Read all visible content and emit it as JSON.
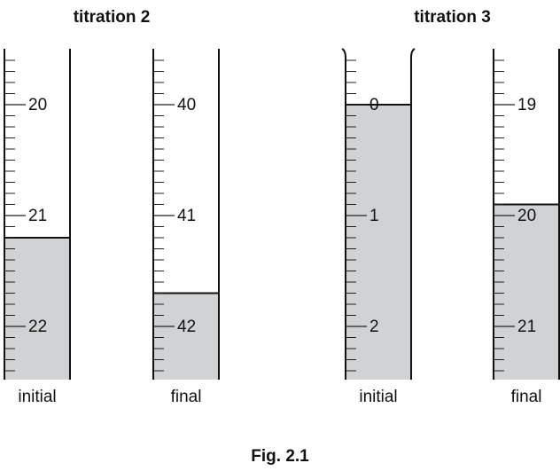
{
  "caption": "Fig. 2.1",
  "titrations": [
    {
      "title": "titration 2",
      "burettes": [
        {
          "label": "initial",
          "ticks": [
            20,
            21,
            22
          ],
          "level": 21.2
        },
        {
          "label": "final",
          "ticks": [
            40,
            41,
            42
          ],
          "level": 41.7
        }
      ]
    },
    {
      "title": "titration 3",
      "burettes": [
        {
          "label": "initial",
          "ticks": [
            0,
            1,
            2
          ],
          "level": 0,
          "open_top": true
        },
        {
          "label": "final",
          "ticks": [
            19,
            20,
            21
          ],
          "level": 19.9
        }
      ]
    }
  ]
}
